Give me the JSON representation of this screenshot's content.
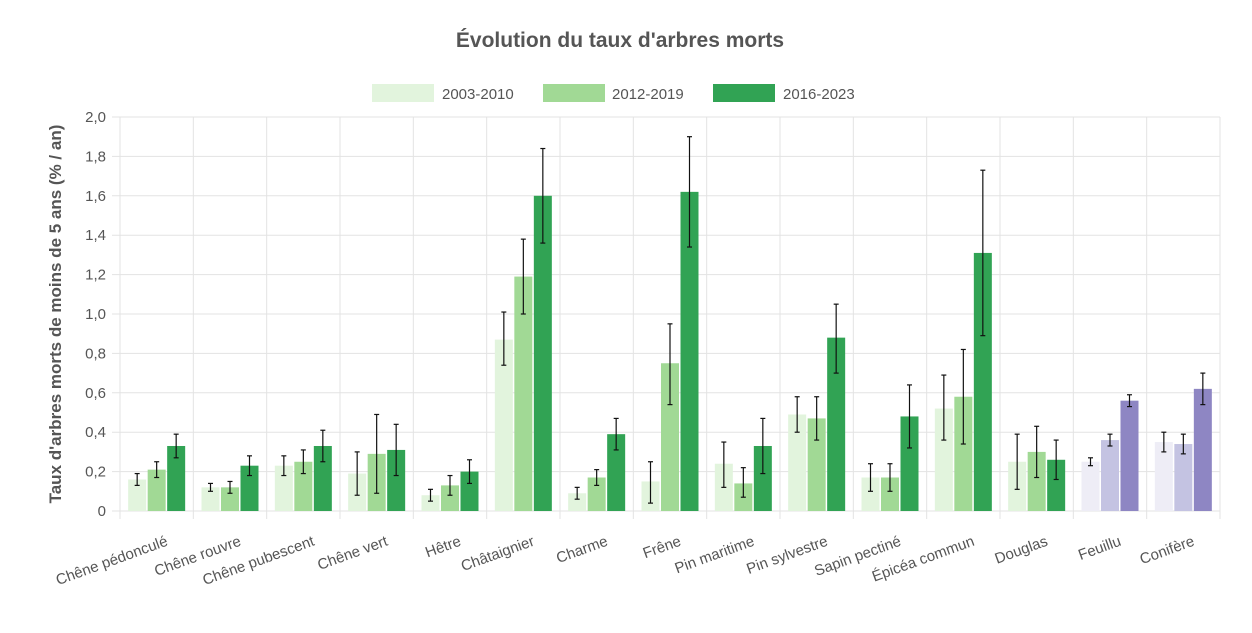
{
  "chart_data": {
    "type": "bar",
    "title": "Évolution du taux d'arbres morts",
    "ylabel": "Taux d'arbres morts de moins de 5 ans (% / an)",
    "xlabel": "",
    "ylim": [
      0,
      2.0
    ],
    "ytick_step": 0.2,
    "ytick_labels": [
      "0",
      "0,2",
      "0,4",
      "0,6",
      "0,8",
      "1,0",
      "1,2",
      "1,4",
      "1,6",
      "1,8",
      "2,0"
    ],
    "grid": true,
    "legend_position": "top-center",
    "categories": [
      "Chêne pédonculé",
      "Chêne rouvre",
      "Chêne pubescent",
      "Chêne vert",
      "Hêtre",
      "Châtaignier",
      "Charme",
      "Frêne",
      "Pin maritime",
      "Pin sylvestre",
      "Sapin pectiné",
      "Épicéa commun",
      "Douglas",
      "Feuillu",
      "Conifère"
    ],
    "series": [
      {
        "name": "2003-2010",
        "values": [
          0.16,
          0.12,
          0.23,
          0.19,
          0.08,
          0.87,
          0.09,
          0.15,
          0.24,
          0.49,
          0.17,
          0.52,
          0.25,
          0.25,
          0.35
        ],
        "error_low": [
          0.13,
          0.1,
          0.18,
          0.08,
          0.05,
          0.74,
          0.06,
          0.04,
          0.12,
          0.4,
          0.1,
          0.36,
          0.11,
          0.23,
          0.3
        ],
        "error_high": [
          0.19,
          0.14,
          0.28,
          0.3,
          0.11,
          1.01,
          0.12,
          0.25,
          0.35,
          0.58,
          0.24,
          0.69,
          0.39,
          0.27,
          0.4
        ]
      },
      {
        "name": "2012-2019",
        "values": [
          0.21,
          0.12,
          0.25,
          0.29,
          0.13,
          1.19,
          0.17,
          0.75,
          0.14,
          0.47,
          0.17,
          0.58,
          0.3,
          0.36,
          0.34
        ],
        "error_low": [
          0.17,
          0.09,
          0.19,
          0.09,
          0.08,
          1.0,
          0.13,
          0.54,
          0.07,
          0.36,
          0.1,
          0.34,
          0.17,
          0.33,
          0.29
        ],
        "error_high": [
          0.25,
          0.15,
          0.31,
          0.49,
          0.18,
          1.38,
          0.21,
          0.95,
          0.22,
          0.58,
          0.24,
          0.82,
          0.43,
          0.39,
          0.39
        ]
      },
      {
        "name": "2016-2023",
        "values": [
          0.33,
          0.23,
          0.33,
          0.31,
          0.2,
          1.6,
          0.39,
          1.62,
          0.33,
          0.88,
          0.48,
          1.31,
          0.26,
          0.56,
          0.62
        ],
        "error_low": [
          0.27,
          0.18,
          0.25,
          0.18,
          0.14,
          1.36,
          0.31,
          1.34,
          0.19,
          0.7,
          0.32,
          0.89,
          0.16,
          0.53,
          0.54
        ],
        "error_high": [
          0.39,
          0.28,
          0.41,
          0.44,
          0.26,
          1.84,
          0.47,
          1.9,
          0.47,
          1.05,
          0.64,
          1.73,
          0.36,
          0.59,
          0.7
        ]
      }
    ],
    "colors": {
      "series_green": [
        "#e2f4dd",
        "#a1d995",
        "#31a354"
      ],
      "series_purple": [
        "#eeedf6",
        "#c4c3e2",
        "#8e86c3"
      ],
      "purple_categories": [
        "Feuillu",
        "Conifère"
      ],
      "grid": "#e3e3e3",
      "text": "#555555",
      "error_bar": "#111111"
    }
  }
}
